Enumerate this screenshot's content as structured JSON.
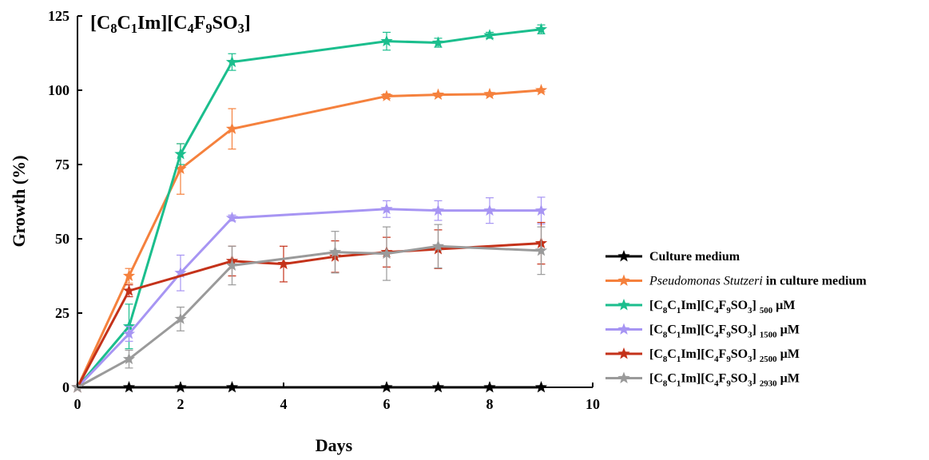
{
  "chart_data": {
    "type": "line",
    "title": "[C8C1Im][C4F9SO3]",
    "xlabel": "Days",
    "ylabel": "Growth (%)",
    "xlim": [
      0,
      10
    ],
    "ylim": [
      0,
      125
    ],
    "xticks": [
      0,
      2,
      4,
      6,
      8,
      10
    ],
    "yticks": [
      0,
      25,
      50,
      75,
      100,
      125
    ],
    "grid": false,
    "legend_position": "right",
    "marker": "star",
    "series": [
      {
        "name": "Culture medium",
        "color": "#000000",
        "x": [
          0,
          1,
          2,
          3,
          6,
          7,
          8,
          9
        ],
        "y": [
          0,
          0,
          0,
          0,
          0,
          0,
          0,
          0
        ],
        "err": [
          0,
          0,
          0,
          0,
          0,
          0,
          0,
          0
        ]
      },
      {
        "name": "Pseudomonas Stutzeri in culture medium",
        "color": "#F5813D",
        "x": [
          0,
          1,
          2,
          3,
          6,
          7,
          8,
          9
        ],
        "y": [
          0,
          37.5,
          73.5,
          87,
          98,
          98.5,
          98.7,
          100
        ],
        "err": [
          0,
          2.5,
          8.5,
          6.8,
          0.8,
          0.5,
          0.5,
          0.5
        ]
      },
      {
        "name": "[C8C1Im][C4F9SO3] 500 µM",
        "color": "#1BBE8D",
        "x": [
          0,
          1,
          2,
          3,
          6,
          7,
          8,
          9
        ],
        "y": [
          0,
          20.5,
          78.5,
          109.5,
          116.5,
          116,
          118.5,
          120.5
        ],
        "err": [
          0,
          7.5,
          3.5,
          2.8,
          3,
          1.5,
          1,
          1.5
        ]
      },
      {
        "name": "[C8C1Im][C4F9SO3] 1500 µM",
        "color": "#A795F3",
        "x": [
          0,
          1,
          2,
          3,
          6,
          7,
          8,
          9
        ],
        "y": [
          0,
          18,
          38.5,
          57,
          60,
          59.5,
          59.5,
          59.5
        ],
        "err": [
          0,
          2.5,
          6,
          1,
          2.8,
          3.3,
          4.3,
          4.5
        ]
      },
      {
        "name": "[C8C1Im][C4F9SO3] 2500 µM",
        "color": "#C4321A",
        "x": [
          0,
          1,
          3,
          4,
          5,
          6,
          7,
          9
        ],
        "y": [
          0,
          32.5,
          42.5,
          41.5,
          44,
          45.5,
          46.5,
          48.5
        ],
        "err": [
          0,
          2,
          5,
          6,
          5.3,
          5,
          6.5,
          7
        ]
      },
      {
        "name": "[C8C1Im][C4F9SO3] 2930 µM",
        "color": "#9A9A9A",
        "x": [
          0,
          1,
          2,
          3,
          5,
          6,
          7,
          9
        ],
        "y": [
          0,
          9.5,
          23,
          41,
          45.5,
          45,
          47.5,
          46
        ],
        "err": [
          0,
          3,
          4,
          6.5,
          7,
          9,
          7.3,
          8
        ]
      }
    ]
  }
}
